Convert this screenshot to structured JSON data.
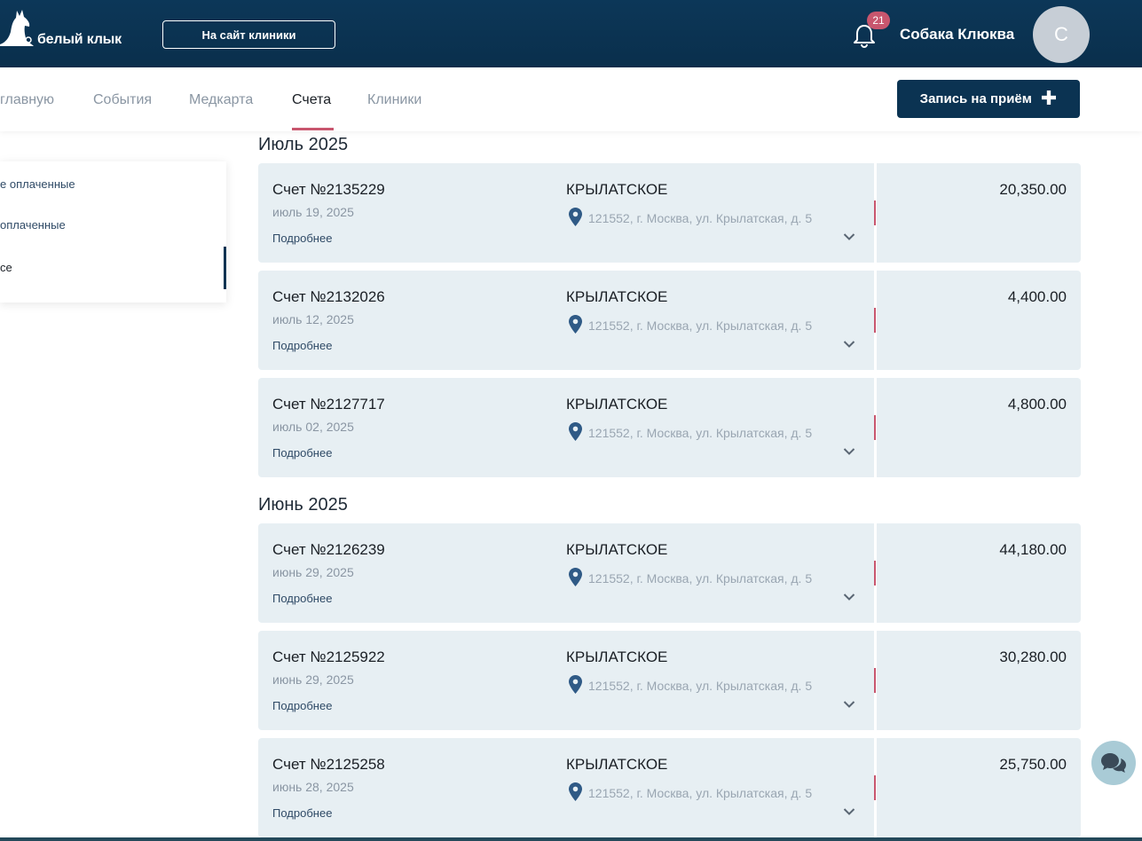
{
  "header": {
    "logo_text": "белый клык",
    "site_button": "На сайт клиники",
    "notifications_count": "21",
    "user_name": "Собака Клюква",
    "avatar_letter": "С"
  },
  "nav": {
    "items": [
      "главную",
      "События",
      "Медкарта",
      "Счета",
      "Клиники"
    ],
    "active": "Счета",
    "book_button": "Запись на приём"
  },
  "filters": {
    "items": [
      "е оплаченные",
      "оплаченные",
      "се"
    ],
    "selected_index": 2
  },
  "groups": [
    {
      "month": "Июль 2025",
      "invoices": [
        {
          "number": "Счет №2135229",
          "date": "июль 19, 2025",
          "more": "Подробнее",
          "clinic": "КРЫЛАТСКОЕ",
          "address": "121552, г. Москва, ул. Крылатская, д. 5",
          "amount": "20,350.00"
        },
        {
          "number": "Счет №2132026",
          "date": "июль 12, 2025",
          "more": "Подробнее",
          "clinic": "КРЫЛАТСКОЕ",
          "address": "121552, г. Москва, ул. Крылатская, д. 5",
          "amount": "4,400.00"
        },
        {
          "number": "Счет №2127717",
          "date": "июль 02, 2025",
          "more": "Подробнее",
          "clinic": "КРЫЛАТСКОЕ",
          "address": "121552, г. Москва, ул. Крылатская, д. 5",
          "amount": "4,800.00"
        }
      ]
    },
    {
      "month": "Июнь 2025",
      "invoices": [
        {
          "number": "Счет №2126239",
          "date": "июнь 29, 2025",
          "more": "Подробнее",
          "clinic": "КРЫЛАТСКОЕ",
          "address": "121552, г. Москва, ул. Крылатская, д. 5",
          "amount": "44,180.00"
        },
        {
          "number": "Счет №2125922",
          "date": "июнь 29, 2025",
          "more": "Подробнее",
          "clinic": "КРЫЛАТСКОЕ",
          "address": "121552, г. Москва, ул. Крылатская, д. 5",
          "amount": "30,280.00"
        },
        {
          "number": "Счет №2125258",
          "date": "июнь 28, 2025",
          "more": "Подробнее",
          "clinic": "КРЫЛАТСКОЕ",
          "address": "121552, г. Москва, ул. Крылатская, д. 5",
          "amount": "25,750.00"
        }
      ]
    }
  ],
  "icons": {
    "logo": "dog-logo-icon",
    "bell": "bell-icon",
    "pin": "location-pin-icon",
    "chevron": "chevron-down-icon",
    "chat": "chat-icon",
    "plus": "plus-icon"
  },
  "colors": {
    "header_bg": "#0b3352",
    "accent_red": "#c8566e",
    "card_bg": "#e7eff3"
  }
}
